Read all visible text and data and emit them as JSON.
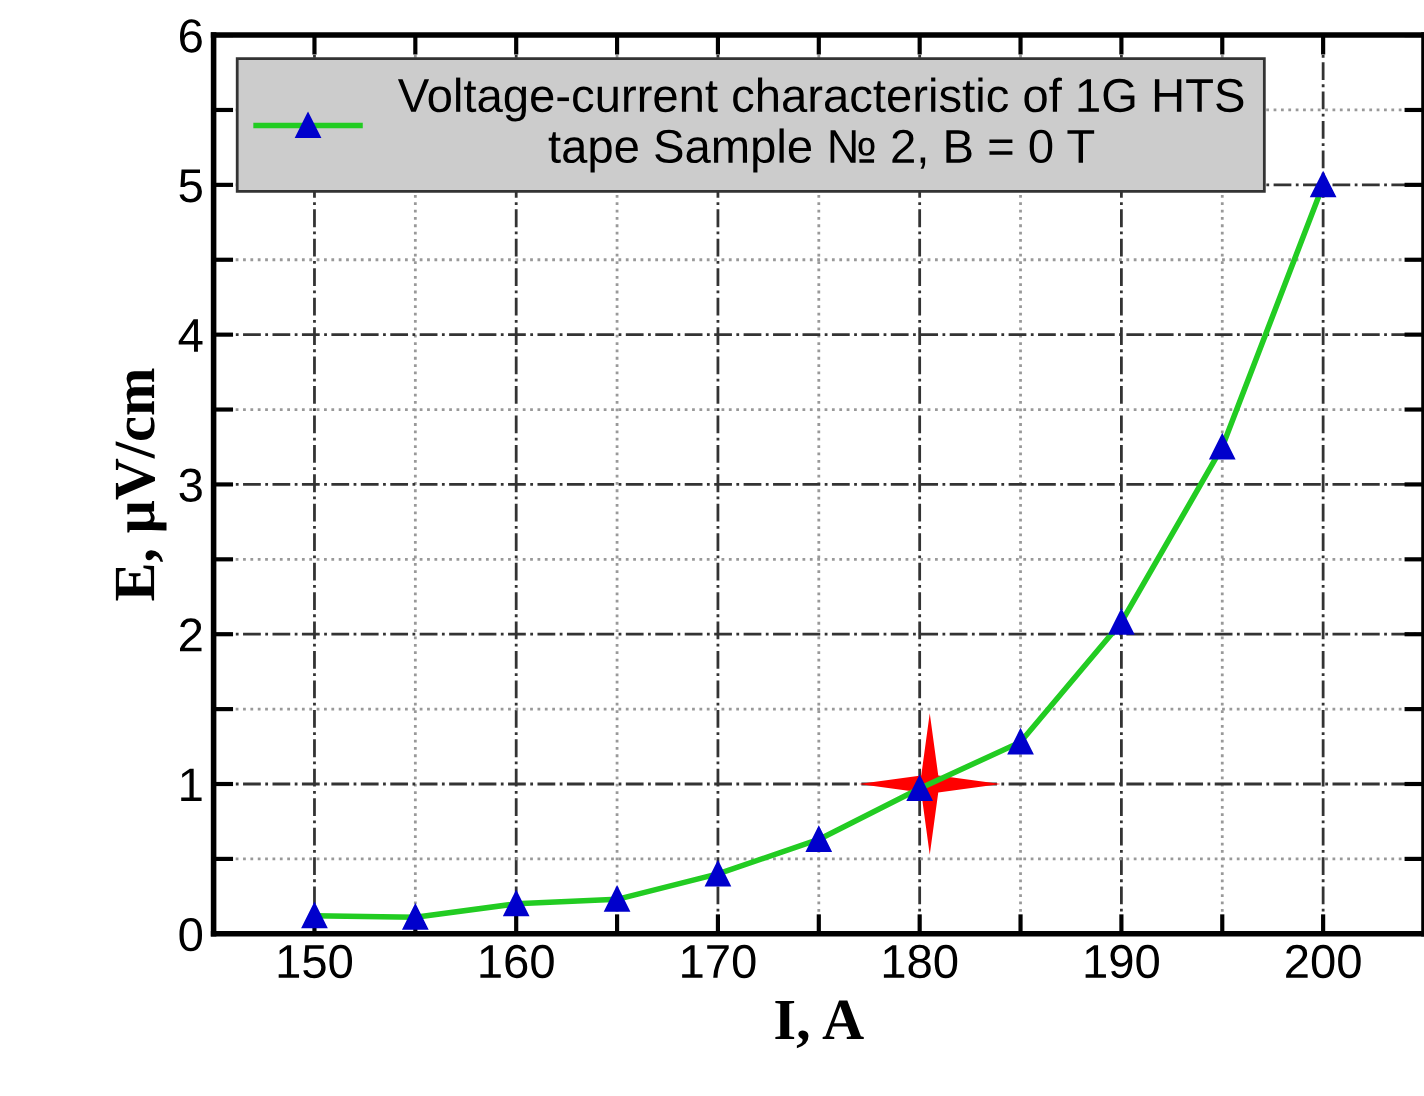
{
  "chart_data": {
    "type": "line",
    "xlabel": "I, A",
    "ylabel": "E, μV/cm",
    "x": [
      150,
      155,
      160,
      165,
      170,
      175,
      180,
      185,
      190,
      195,
      200
    ],
    "series": [
      {
        "name": "Voltage-current characteristic of 1G HTS\ntape Sample № 2, B = 0 T",
        "color": "#22cc22",
        "marker": "triangle",
        "values": [
          0.12,
          0.11,
          0.2,
          0.23,
          0.4,
          0.63,
          0.97,
          1.28,
          2.08,
          3.25,
          5.0
        ]
      },
      {
        "type": "scatter",
        "x": [
          180.5
        ],
        "color": "#ff0000",
        "marker": "star",
        "values": [
          1.0
        ]
      }
    ],
    "xlim": [
      145,
      205
    ],
    "ylim": [
      0,
      6
    ],
    "xticks": [
      150,
      {
        "value": 155,
        "label": null
      },
      160,
      {
        "value": 165,
        "label": null
      },
      170,
      {
        "value": 175,
        "label": null
      },
      180,
      {
        "value": 185,
        "label": null
      },
      190,
      {
        "value": 195,
        "label": null
      },
      200
    ],
    "yticks": [
      0,
      {
        "value": 0.5,
        "label": null
      },
      1,
      {
        "value": 1.5,
        "label": null
      },
      2,
      {
        "value": 2.5,
        "label": null
      },
      3,
      {
        "value": 3.5,
        "label": null
      },
      4,
      {
        "value": 4.5,
        "label": null
      },
      5,
      {
        "value": 5.5,
        "label": null
      },
      6
    ],
    "grid": true,
    "legend": "top left",
    "line_style": "solid"
  }
}
